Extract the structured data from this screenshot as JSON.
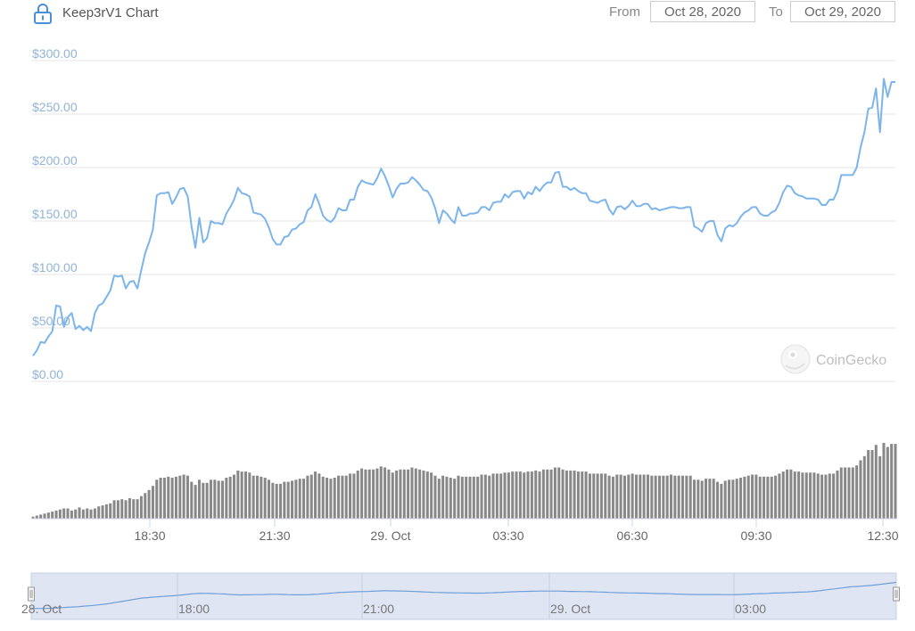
{
  "header": {
    "title": "Keep3rV1 Chart",
    "from_label": "From",
    "from_date": "Oct 28, 2020",
    "to_label": "To",
    "to_date": "Oct 29, 2020"
  },
  "watermark": "CoinGecko",
  "colors": {
    "price_line": "#7cb5ec",
    "volume_bar": "#888888",
    "axis_label": "#90b4d8",
    "navigator_bg": "#dfe5f3",
    "lock_icon": "#4a90d9"
  },
  "icons": {
    "lock": "lock-icon",
    "watermark": "coingecko-gecko-icon"
  },
  "chart_data": {
    "type": "line",
    "title": "Keep3rV1 Chart",
    "y_axis": {
      "ticks": [
        "$0.00",
        "$50.00",
        "$100.00",
        "$150.00",
        "$200.00",
        "$250.00",
        "$300.00"
      ],
      "ylim": [
        0,
        300
      ]
    },
    "x_axis": {
      "ticks": [
        "18:30",
        "21:30",
        "29. Oct",
        "03:30",
        "06:30",
        "09:30",
        "12:30"
      ]
    },
    "grid": true,
    "series": [
      {
        "type": "line",
        "values": [
          24,
          29,
          37,
          36,
          42,
          47,
          71,
          70,
          51,
          60,
          64,
          49,
          52,
          48,
          51,
          47,
          64,
          71,
          73,
          79,
          85,
          99,
          98,
          99,
          87,
          93,
          94,
          87,
          104,
          120,
          130,
          142,
          174,
          176,
          176,
          177,
          166,
          172,
          180,
          181,
          173,
          145,
          125,
          153,
          130,
          134,
          150,
          148,
          148,
          147,
          157,
          163,
          170,
          181,
          176,
          175,
          173,
          158,
          157,
          156,
          152,
          144,
          133,
          128,
          128,
          135,
          136,
          142,
          143,
          147,
          149,
          160,
          163,
          175,
          166,
          155,
          151,
          149,
          153,
          162,
          160,
          160,
          170,
          170,
          182,
          188,
          186,
          185,
          184,
          190,
          199,
          192,
          183,
          172,
          180,
          185,
          185,
          186,
          191,
          188,
          184,
          179,
          178,
          172,
          162,
          148,
          160,
          157,
          152,
          148,
          163,
          155,
          155,
          157,
          157,
          158,
          163,
          163,
          160,
          167,
          168,
          168,
          175,
          172,
          177,
          178,
          178,
          171,
          177,
          175,
          182,
          178,
          183,
          186,
          186,
          195,
          196,
          182,
          182,
          179,
          181,
          178,
          176,
          176,
          169,
          168,
          167,
          169,
          170,
          161,
          156,
          163,
          164,
          161,
          164,
          169,
          164,
          164,
          166,
          166,
          161,
          162,
          160,
          161,
          162,
          163,
          163,
          162,
          162,
          163,
          163,
          145,
          143,
          140,
          148,
          150,
          150,
          137,
          131,
          143,
          146,
          145,
          148,
          154,
          158,
          160,
          163,
          163,
          157,
          155,
          155,
          158,
          160,
          167,
          177,
          183,
          182,
          176,
          174,
          173,
          171,
          171,
          171,
          170,
          165,
          165,
          170,
          170,
          178,
          193,
          193,
          193,
          193,
          200,
          219,
          233,
          255,
          256,
          274,
          233,
          283,
          266,
          280,
          280
        ]
      },
      {
        "type": "bar",
        "name": "volume",
        "values": [
          2,
          3,
          4,
          5,
          6,
          7,
          8,
          9,
          10,
          10,
          8,
          9,
          11,
          9,
          10,
          9,
          10,
          12,
          13,
          14,
          15,
          18,
          18,
          19,
          18,
          20,
          19,
          19,
          22,
          25,
          28,
          32,
          38,
          40,
          40,
          41,
          40,
          41,
          42,
          43,
          42,
          36,
          33,
          38,
          35,
          35,
          38,
          38,
          37,
          37,
          40,
          41,
          43,
          47,
          46,
          46,
          45,
          42,
          42,
          41,
          40,
          38,
          35,
          34,
          34,
          36,
          36,
          37,
          38,
          39,
          39,
          42,
          43,
          46,
          44,
          41,
          40,
          39,
          40,
          42,
          42,
          42,
          44,
          44,
          47,
          49,
          48,
          48,
          48,
          49,
          51,
          50,
          48,
          45,
          47,
          48,
          48,
          48,
          50,
          49,
          48,
          47,
          46,
          45,
          42,
          39,
          42,
          41,
          40,
          39,
          42,
          41,
          41,
          41,
          41,
          41,
          43,
          43,
          42,
          44,
          44,
          44,
          45,
          45,
          46,
          46,
          46,
          45,
          46,
          46,
          47,
          46,
          48,
          48,
          48,
          50,
          50,
          48,
          47,
          47,
          47,
          46,
          46,
          46,
          44,
          44,
          44,
          44,
          44,
          42,
          41,
          43,
          43,
          42,
          43,
          44,
          43,
          43,
          43,
          43,
          42,
          42,
          42,
          42,
          42,
          43,
          42,
          42,
          42,
          42,
          42,
          38,
          38,
          37,
          39,
          39,
          39,
          36,
          34,
          37,
          38,
          38,
          39,
          40,
          41,
          42,
          43,
          43,
          41,
          41,
          41,
          41,
          42,
          44,
          46,
          48,
          48,
          46,
          46,
          45,
          45,
          45,
          45,
          44,
          43,
          43,
          44,
          44,
          47,
          50,
          50,
          50,
          50,
          52,
          57,
          61,
          67,
          67,
          72,
          61,
          74,
          70,
          73,
          73
        ]
      }
    ],
    "navigator": {
      "x_ticks": [
        "28. Oct",
        "18:00",
        "21:00",
        "29. Oct",
        "03:00"
      ]
    }
  }
}
